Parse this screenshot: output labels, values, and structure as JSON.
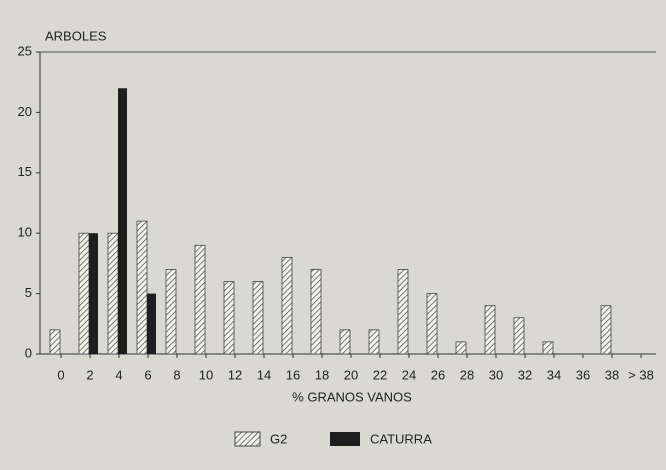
{
  "chart_data": {
    "type": "bar",
    "y_label": "ARBOLES",
    "x_label": "% GRANOS VANOS",
    "categories": [
      "0",
      "2",
      "4",
      "6",
      "8",
      "10",
      "12",
      "14",
      "16",
      "18",
      "20",
      "22",
      "24",
      "26",
      "28",
      "30",
      "32",
      "34",
      "36",
      "38",
      "> 38"
    ],
    "series": [
      {
        "name": "G2",
        "color": "#444444",
        "hatch": true,
        "values": [
          2,
          10,
          10,
          11,
          7,
          9,
          6,
          6,
          8,
          7,
          2,
          2,
          7,
          5,
          1,
          4,
          3,
          1,
          0,
          4,
          0
        ]
      },
      {
        "name": "CATURRA",
        "color": "#1e1e1e",
        "hatch": false,
        "values": [
          0,
          10,
          22,
          5,
          0,
          0,
          0,
          0,
          0,
          0,
          0,
          0,
          0,
          0,
          0,
          0,
          0,
          0,
          0,
          0,
          0
        ]
      }
    ],
    "ylim": [
      0,
      25
    ],
    "yticks": [
      0,
      5,
      10,
      15,
      20,
      25
    ]
  }
}
